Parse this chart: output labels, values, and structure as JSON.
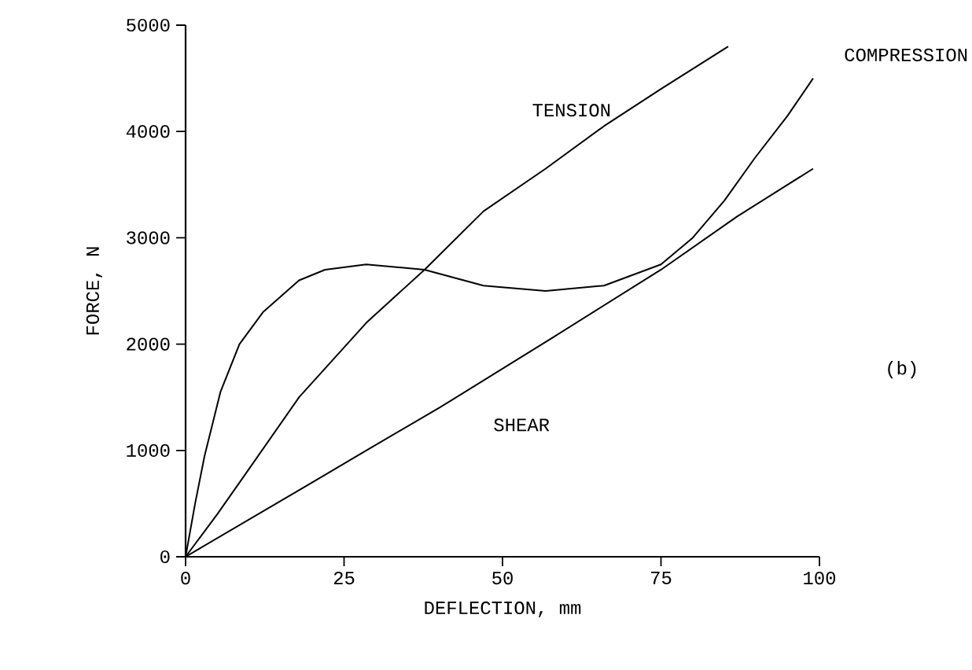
{
  "chart_data": {
    "type": "line",
    "xlabel": "DEFLECTION, mm",
    "ylabel": "FORCE, N",
    "xlim": [
      0,
      100
    ],
    "ylim": [
      0,
      5000
    ],
    "xticks": [
      0,
      25,
      50,
      75,
      100
    ],
    "yticks": [
      0,
      1000,
      2000,
      3000,
      4000,
      5000
    ],
    "grid": false,
    "legend": false,
    "marker": "none",
    "line_style": "solid",
    "annotations": [
      "(b)"
    ],
    "series": [
      {
        "name": "TENSION",
        "color": "#000000",
        "x": [
          0,
          5,
          9.7,
          17.9,
          28.5,
          37.7,
          47,
          56.8,
          66,
          75,
          85.6
        ],
        "values": [
          0,
          400,
          800,
          1500,
          2200,
          2700,
          3250,
          3650,
          4050,
          4400,
          4800
        ]
      },
      {
        "name": "COMPRESSION",
        "color": "#000000",
        "x": [
          0,
          1.5,
          3,
          5.5,
          8.5,
          12.2,
          17.9,
          22,
          28.5,
          37.7,
          47,
          56.8,
          66,
          75,
          80,
          85,
          89.8,
          95,
          99
        ],
        "values": [
          0,
          500,
          950,
          1550,
          2000,
          2300,
          2600,
          2700,
          2750,
          2700,
          2550,
          2500,
          2550,
          2750,
          3000,
          3350,
          3750,
          4150,
          4500
        ]
      },
      {
        "name": "SHEAR",
        "color": "#000000",
        "x": [
          0,
          10,
          20,
          28.5,
          40,
          57.6,
          75,
          87,
          99
        ],
        "values": [
          0,
          350,
          700,
          1000,
          1400,
          2050,
          2700,
          3200,
          3650
        ]
      }
    ]
  }
}
